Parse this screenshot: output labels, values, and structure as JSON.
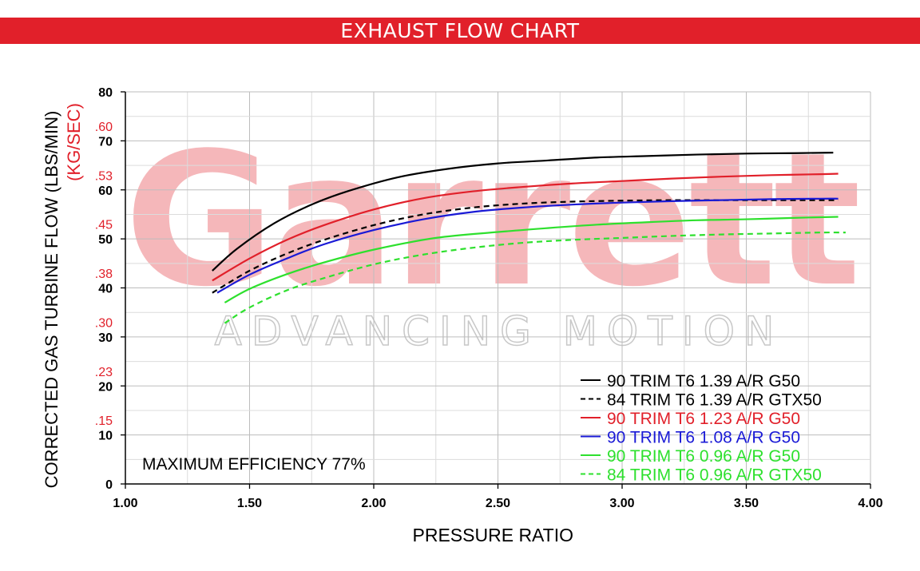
{
  "header": {
    "title": "EXHAUST FLOW CHART",
    "color": "#e1202a"
  },
  "watermark": {
    "brand": "Garrett",
    "tagline": "ADVANCING MOTION"
  },
  "chart_data": {
    "type": "line",
    "title": "EXHAUST FLOW CHART",
    "xlabel": "PRESSURE RATIO",
    "ylabel": "CORRECTED GAS TURBINE FLOW (LBS/MIN)",
    "ylabel_secondary": "(KG/SEC)",
    "xlim": [
      1.0,
      4.0
    ],
    "ylim": [
      0,
      80
    ],
    "grid": true,
    "legend_position": "bottom-right",
    "x_ticks": [
      {
        "value": 1.0,
        "label": "1.00"
      },
      {
        "value": 1.5,
        "label": "1.50"
      },
      {
        "value": 2.0,
        "label": "2.00"
      },
      {
        "value": 2.5,
        "label": "2.50"
      },
      {
        "value": 3.0,
        "label": "3.00"
      },
      {
        "value": 3.5,
        "label": "3.50"
      },
      {
        "value": 4.0,
        "label": "4.00"
      }
    ],
    "y_ticks": [
      {
        "value": 0,
        "label": "0"
      },
      {
        "value": 10,
        "label": "10"
      },
      {
        "value": 20,
        "label": "20"
      },
      {
        "value": 30,
        "label": "30"
      },
      {
        "value": 40,
        "label": "40"
      },
      {
        "value": 50,
        "label": "50"
      },
      {
        "value": 60,
        "label": "60"
      },
      {
        "value": 70,
        "label": "70"
      },
      {
        "value": 80,
        "label": "80"
      }
    ],
    "y_ticks_secondary": [
      {
        "value": 13,
        "label": ".15"
      },
      {
        "value": 23,
        "label": ".23"
      },
      {
        "value": 33,
        "label": ".30"
      },
      {
        "value": 43,
        "label": ".38"
      },
      {
        "value": 53,
        "label": ".45"
      },
      {
        "value": 63,
        "label": ".53"
      },
      {
        "value": 73,
        "label": ".60"
      }
    ],
    "secondary_color": "#e1202a",
    "annotation": "MAXIMUM EFFICIENCY 77%",
    "series": [
      {
        "name": "90 TRIM T6 1.39 A/R G50",
        "color": "#000000",
        "dash": false,
        "x": [
          1.35,
          1.45,
          1.6,
          1.75,
          1.9,
          2.1,
          2.3,
          2.5,
          2.7,
          2.9,
          3.1,
          3.3,
          3.5,
          3.7,
          3.85
        ],
        "y": [
          43.5,
          48.0,
          53.2,
          57.0,
          59.8,
          62.6,
          64.3,
          65.4,
          66.0,
          66.6,
          66.9,
          67.2,
          67.4,
          67.5,
          67.6
        ]
      },
      {
        "name": "84 TRIM T6 1.39 A/R GTX50",
        "color": "#000000",
        "dash": true,
        "x": [
          1.35,
          1.5,
          1.65,
          1.8,
          2.0,
          2.2,
          2.4,
          2.6,
          2.8,
          3.0,
          3.2,
          3.4,
          3.6,
          3.8,
          3.87
        ],
        "y": [
          39.0,
          43.5,
          47.0,
          49.8,
          52.8,
          55.0,
          56.4,
          57.2,
          57.6,
          57.8,
          57.9,
          57.9,
          57.9,
          57.9,
          57.9
        ]
      },
      {
        "name": "90 TRIM T6 1.23 A/R G50",
        "color": "#e1202a",
        "dash": false,
        "x": [
          1.35,
          1.5,
          1.65,
          1.8,
          2.0,
          2.2,
          2.4,
          2.6,
          2.8,
          3.0,
          3.2,
          3.4,
          3.6,
          3.8,
          3.87
        ],
        "y": [
          41.5,
          46.0,
          49.8,
          52.8,
          56.0,
          58.3,
          59.7,
          60.6,
          61.3,
          61.8,
          62.3,
          62.7,
          63.0,
          63.2,
          63.3
        ]
      },
      {
        "name": "90 TRIM T6 1.08 A/R G50",
        "color": "#1a1ad6",
        "dash": false,
        "x": [
          1.37,
          1.5,
          1.65,
          1.8,
          2.0,
          2.2,
          2.4,
          2.6,
          2.8,
          3.0,
          3.2,
          3.4,
          3.6,
          3.8,
          3.87
        ],
        "y": [
          39.0,
          42.7,
          46.0,
          48.9,
          51.8,
          54.0,
          55.5,
          56.4,
          57.0,
          57.4,
          57.7,
          57.9,
          58.1,
          58.2,
          58.2
        ]
      },
      {
        "name": "90 TRIM T6 0.96 A/R G50",
        "color": "#2ee02e",
        "dash": false,
        "x": [
          1.4,
          1.5,
          1.65,
          1.8,
          2.0,
          2.25,
          2.5,
          2.7,
          2.9,
          3.1,
          3.3,
          3.5,
          3.7,
          3.87
        ],
        "y": [
          37.0,
          39.8,
          42.8,
          45.2,
          47.8,
          50.2,
          51.4,
          52.2,
          52.9,
          53.4,
          53.8,
          54.0,
          54.3,
          54.5
        ]
      },
      {
        "name": "84 TRIM T6 0.96 A/R GTX50",
        "color": "#2ee02e",
        "dash": true,
        "x": [
          1.4,
          1.5,
          1.65,
          1.8,
          2.0,
          2.2,
          2.4,
          2.6,
          2.8,
          3.0,
          3.2,
          3.4,
          3.6,
          3.8,
          3.9
        ],
        "y": [
          32.8,
          36.0,
          39.5,
          42.0,
          44.8,
          46.8,
          48.2,
          49.2,
          49.8,
          50.2,
          50.6,
          50.9,
          51.1,
          51.3,
          51.3
        ]
      }
    ]
  }
}
